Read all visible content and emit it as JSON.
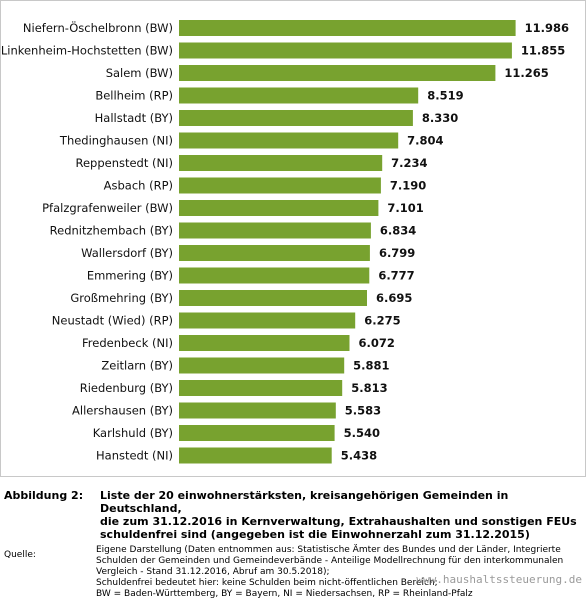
{
  "chart_data": {
    "type": "bar",
    "orientation": "horizontal",
    "categories": [
      "Niefern-Öschelbronn (BW)",
      "Linkenheim-Hochstetten (BW)",
      "Salem (BW)",
      "Bellheim (RP)",
      "Hallstadt (BY)",
      "Thedinghausen (NI)",
      "Reppenstedt (NI)",
      "Asbach (RP)",
      "Pfalzgrafenweiler (BW)",
      "Rednitzhembach (BY)",
      "Wallersdorf (BY)",
      "Emmering (BY)",
      "Großmehring (BY)",
      "Neustadt (Wied) (RP)",
      "Fredenbeck (NI)",
      "Zeitlarn (BY)",
      "Riedenburg (BY)",
      "Allershausen (BY)",
      "Karlshuld (BY)",
      "Hanstedt (NI)"
    ],
    "values": [
      11986,
      11855,
      11265,
      8519,
      8330,
      7804,
      7234,
      7190,
      7101,
      6834,
      6799,
      6777,
      6695,
      6275,
      6072,
      5881,
      5813,
      5583,
      5540,
      5438
    ],
    "value_labels": [
      "11.986",
      "11.855",
      "11.265",
      "8.519",
      "8.330",
      "7.804",
      "7.234",
      "7.190",
      "7.101",
      "6.834",
      "6.799",
      "6.777",
      "6.695",
      "6.275",
      "6.072",
      "5.881",
      "5.813",
      "5.583",
      "5.540",
      "5.438"
    ],
    "xlim": [
      0,
      12000
    ],
    "grid": false,
    "bar_color": "#78a22f"
  },
  "caption": {
    "label": "Abbildung 2:",
    "title_lines": [
      "Liste der 20 einwohnerstärksten, kreisangehörigen Gemeinden in Deutschland,",
      "die zum 31.12.2016 in Kernverwaltung, Extrahaushalten und sonstigen FEUs",
      "schuldenfrei sind (angegeben ist die Einwohnerzahl zum 31.12.2015)"
    ]
  },
  "source": {
    "label": "Quelle:",
    "lines": [
      "Eigene Darstellung (Daten entnommen aus: Statistische Ämter des Bundes und der Länder, Integrierte",
      "Schulden der Gemeinden und Gemeindeverbände - Anteilige Modellrechnung für den interkommunalen",
      "Vergleich - Stand 31.12.2016,  Abruf am 30.5.2018);",
      "Schuldenfrei bedeutet hier: keine Schulden beim nicht-öffentlichen Bereich;",
      "BW = Baden-Württemberg, BY = Bayern, NI = Niedersachsen, RP = Rheinland-Pfalz"
    ]
  },
  "watermark": "www.haushaltssteuerung.de"
}
